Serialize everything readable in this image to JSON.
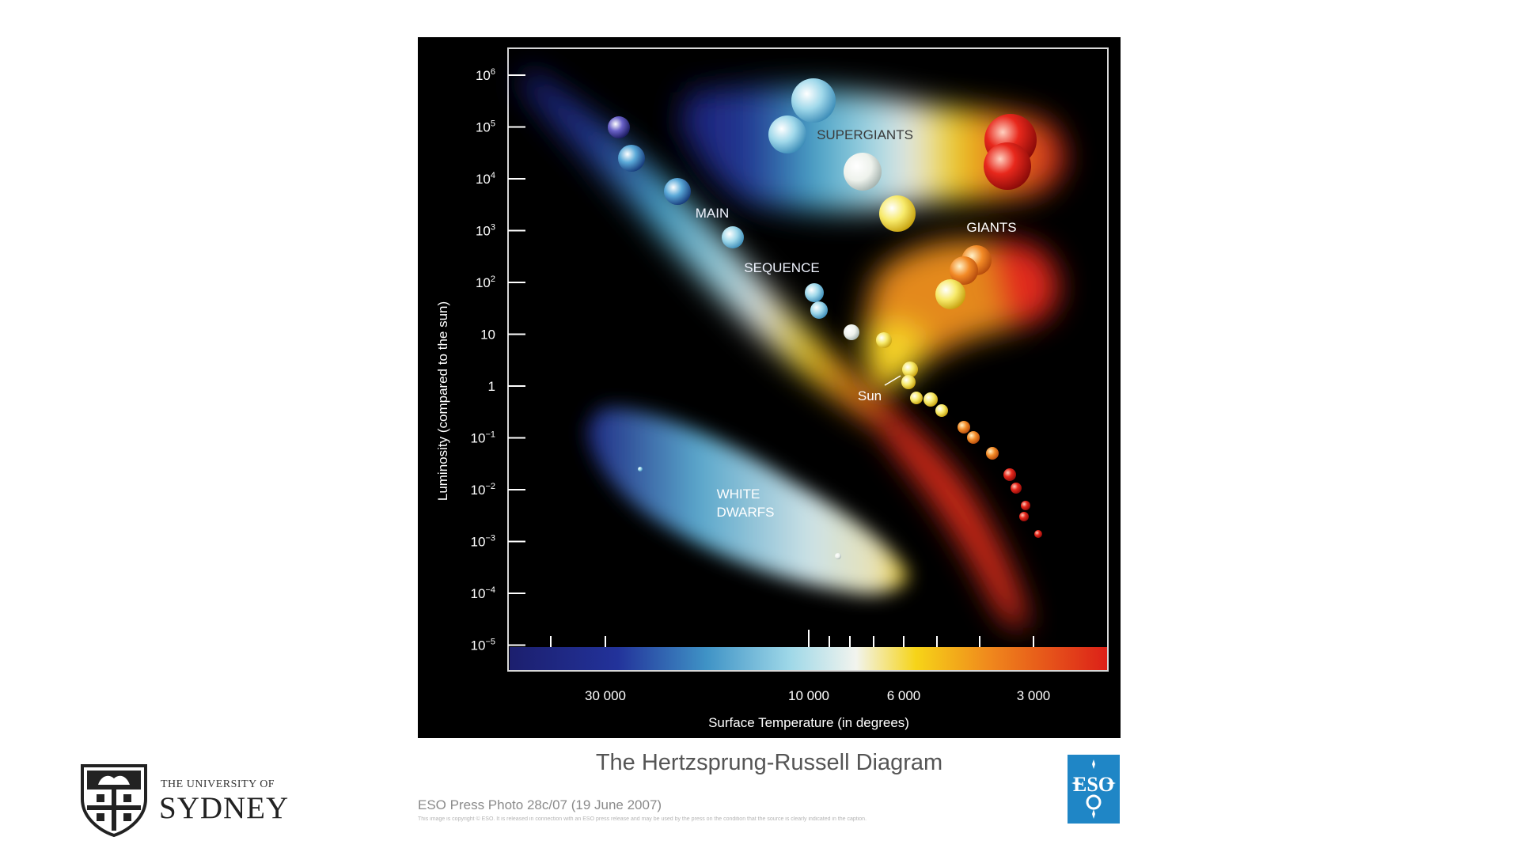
{
  "diagram": {
    "y_axis_label": "Luminosity (compared to the sun)",
    "x_axis_label": "Surface Temperature (in degrees)",
    "y_ticks": [
      {
        "base": "10",
        "exp": "6"
      },
      {
        "base": "10",
        "exp": "5"
      },
      {
        "base": "10",
        "exp": "4"
      },
      {
        "base": "10",
        "exp": "3"
      },
      {
        "base": "10",
        "exp": "2"
      },
      {
        "base": "10",
        "exp": ""
      },
      {
        "base": "1",
        "exp": ""
      },
      {
        "base": "10",
        "exp": "−1"
      },
      {
        "base": "10",
        "exp": "−2"
      },
      {
        "base": "10",
        "exp": "−3"
      },
      {
        "base": "10",
        "exp": "−4"
      },
      {
        "base": "10",
        "exp": "−5"
      }
    ],
    "x_ticks": [
      "30 000",
      "10 000",
      "6 000",
      "3 000"
    ],
    "labels": {
      "supergiants": "SUPERGIANTS",
      "giants": "GIANTS",
      "main": "MAIN",
      "sequence": "SEQUENCE",
      "white": "WHITE",
      "dwarfs": "DWARFS",
      "sun": "Sun"
    },
    "colors": {
      "hot": "#1e2a8c",
      "mid": "#8fd3e6",
      "white": "#f2f4f0",
      "yellow": "#f5d21a",
      "orange": "#f0861e",
      "cool": "#e0261a"
    }
  },
  "caption": {
    "title": "The Hertzsprung-Russell Diagram",
    "press": "ESO Press Photo 28c/07 (19 June 2007)",
    "fine_print": "This image is copyright © ESO. It is released in connection with an ESO press release and may be used by the press on the condition that the source is clearly indicated in the caption."
  },
  "logos": {
    "eso": "ESO",
    "usyd_small": "THE UNIVERSITY OF",
    "usyd_big": "SYDNEY"
  }
}
